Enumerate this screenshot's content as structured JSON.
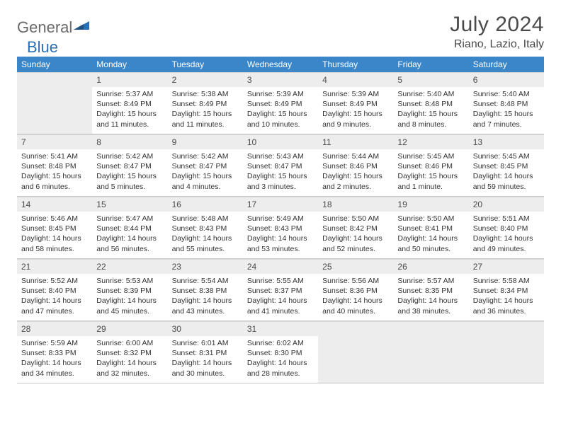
{
  "brand": {
    "part1": "General",
    "part2": "Blue"
  },
  "title": "July 2024",
  "location": "Riano, Lazio, Italy",
  "colors": {
    "header_bg": "#3a86c8",
    "header_text": "#ffffff",
    "daynum_bg": "#ededed",
    "border": "#c8c8c8",
    "text": "#333333",
    "title_text": "#4a4a4a"
  },
  "typography": {
    "title_fontsize": 30,
    "location_fontsize": 16,
    "dayhead_fontsize": 12,
    "info_fontsize": 10.5
  },
  "layout": {
    "columns": 7,
    "row_min_height": 88
  },
  "weekdays": [
    "Sunday",
    "Monday",
    "Tuesday",
    "Wednesday",
    "Thursday",
    "Friday",
    "Saturday"
  ],
  "first_weekday_offset": 1,
  "days": [
    {
      "n": 1,
      "sr": "5:37 AM",
      "ss": "8:49 PM",
      "dl": "15 hours and 11 minutes."
    },
    {
      "n": 2,
      "sr": "5:38 AM",
      "ss": "8:49 PM",
      "dl": "15 hours and 11 minutes."
    },
    {
      "n": 3,
      "sr": "5:39 AM",
      "ss": "8:49 PM",
      "dl": "15 hours and 10 minutes."
    },
    {
      "n": 4,
      "sr": "5:39 AM",
      "ss": "8:49 PM",
      "dl": "15 hours and 9 minutes."
    },
    {
      "n": 5,
      "sr": "5:40 AM",
      "ss": "8:48 PM",
      "dl": "15 hours and 8 minutes."
    },
    {
      "n": 6,
      "sr": "5:40 AM",
      "ss": "8:48 PM",
      "dl": "15 hours and 7 minutes."
    },
    {
      "n": 7,
      "sr": "5:41 AM",
      "ss": "8:48 PM",
      "dl": "15 hours and 6 minutes."
    },
    {
      "n": 8,
      "sr": "5:42 AM",
      "ss": "8:47 PM",
      "dl": "15 hours and 5 minutes."
    },
    {
      "n": 9,
      "sr": "5:42 AM",
      "ss": "8:47 PM",
      "dl": "15 hours and 4 minutes."
    },
    {
      "n": 10,
      "sr": "5:43 AM",
      "ss": "8:47 PM",
      "dl": "15 hours and 3 minutes."
    },
    {
      "n": 11,
      "sr": "5:44 AM",
      "ss": "8:46 PM",
      "dl": "15 hours and 2 minutes."
    },
    {
      "n": 12,
      "sr": "5:45 AM",
      "ss": "8:46 PM",
      "dl": "15 hours and 1 minute."
    },
    {
      "n": 13,
      "sr": "5:45 AM",
      "ss": "8:45 PM",
      "dl": "14 hours and 59 minutes."
    },
    {
      "n": 14,
      "sr": "5:46 AM",
      "ss": "8:45 PM",
      "dl": "14 hours and 58 minutes."
    },
    {
      "n": 15,
      "sr": "5:47 AM",
      "ss": "8:44 PM",
      "dl": "14 hours and 56 minutes."
    },
    {
      "n": 16,
      "sr": "5:48 AM",
      "ss": "8:43 PM",
      "dl": "14 hours and 55 minutes."
    },
    {
      "n": 17,
      "sr": "5:49 AM",
      "ss": "8:43 PM",
      "dl": "14 hours and 53 minutes."
    },
    {
      "n": 18,
      "sr": "5:50 AM",
      "ss": "8:42 PM",
      "dl": "14 hours and 52 minutes."
    },
    {
      "n": 19,
      "sr": "5:50 AM",
      "ss": "8:41 PM",
      "dl": "14 hours and 50 minutes."
    },
    {
      "n": 20,
      "sr": "5:51 AM",
      "ss": "8:40 PM",
      "dl": "14 hours and 49 minutes."
    },
    {
      "n": 21,
      "sr": "5:52 AM",
      "ss": "8:40 PM",
      "dl": "14 hours and 47 minutes."
    },
    {
      "n": 22,
      "sr": "5:53 AM",
      "ss": "8:39 PM",
      "dl": "14 hours and 45 minutes."
    },
    {
      "n": 23,
      "sr": "5:54 AM",
      "ss": "8:38 PM",
      "dl": "14 hours and 43 minutes."
    },
    {
      "n": 24,
      "sr": "5:55 AM",
      "ss": "8:37 PM",
      "dl": "14 hours and 41 minutes."
    },
    {
      "n": 25,
      "sr": "5:56 AM",
      "ss": "8:36 PM",
      "dl": "14 hours and 40 minutes."
    },
    {
      "n": 26,
      "sr": "5:57 AM",
      "ss": "8:35 PM",
      "dl": "14 hours and 38 minutes."
    },
    {
      "n": 27,
      "sr": "5:58 AM",
      "ss": "8:34 PM",
      "dl": "14 hours and 36 minutes."
    },
    {
      "n": 28,
      "sr": "5:59 AM",
      "ss": "8:33 PM",
      "dl": "14 hours and 34 minutes."
    },
    {
      "n": 29,
      "sr": "6:00 AM",
      "ss": "8:32 PM",
      "dl": "14 hours and 32 minutes."
    },
    {
      "n": 30,
      "sr": "6:01 AM",
      "ss": "8:31 PM",
      "dl": "14 hours and 30 minutes."
    },
    {
      "n": 31,
      "sr": "6:02 AM",
      "ss": "8:30 PM",
      "dl": "14 hours and 28 minutes."
    }
  ],
  "labels": {
    "sunrise": "Sunrise:",
    "sunset": "Sunset:",
    "daylight": "Daylight:"
  }
}
